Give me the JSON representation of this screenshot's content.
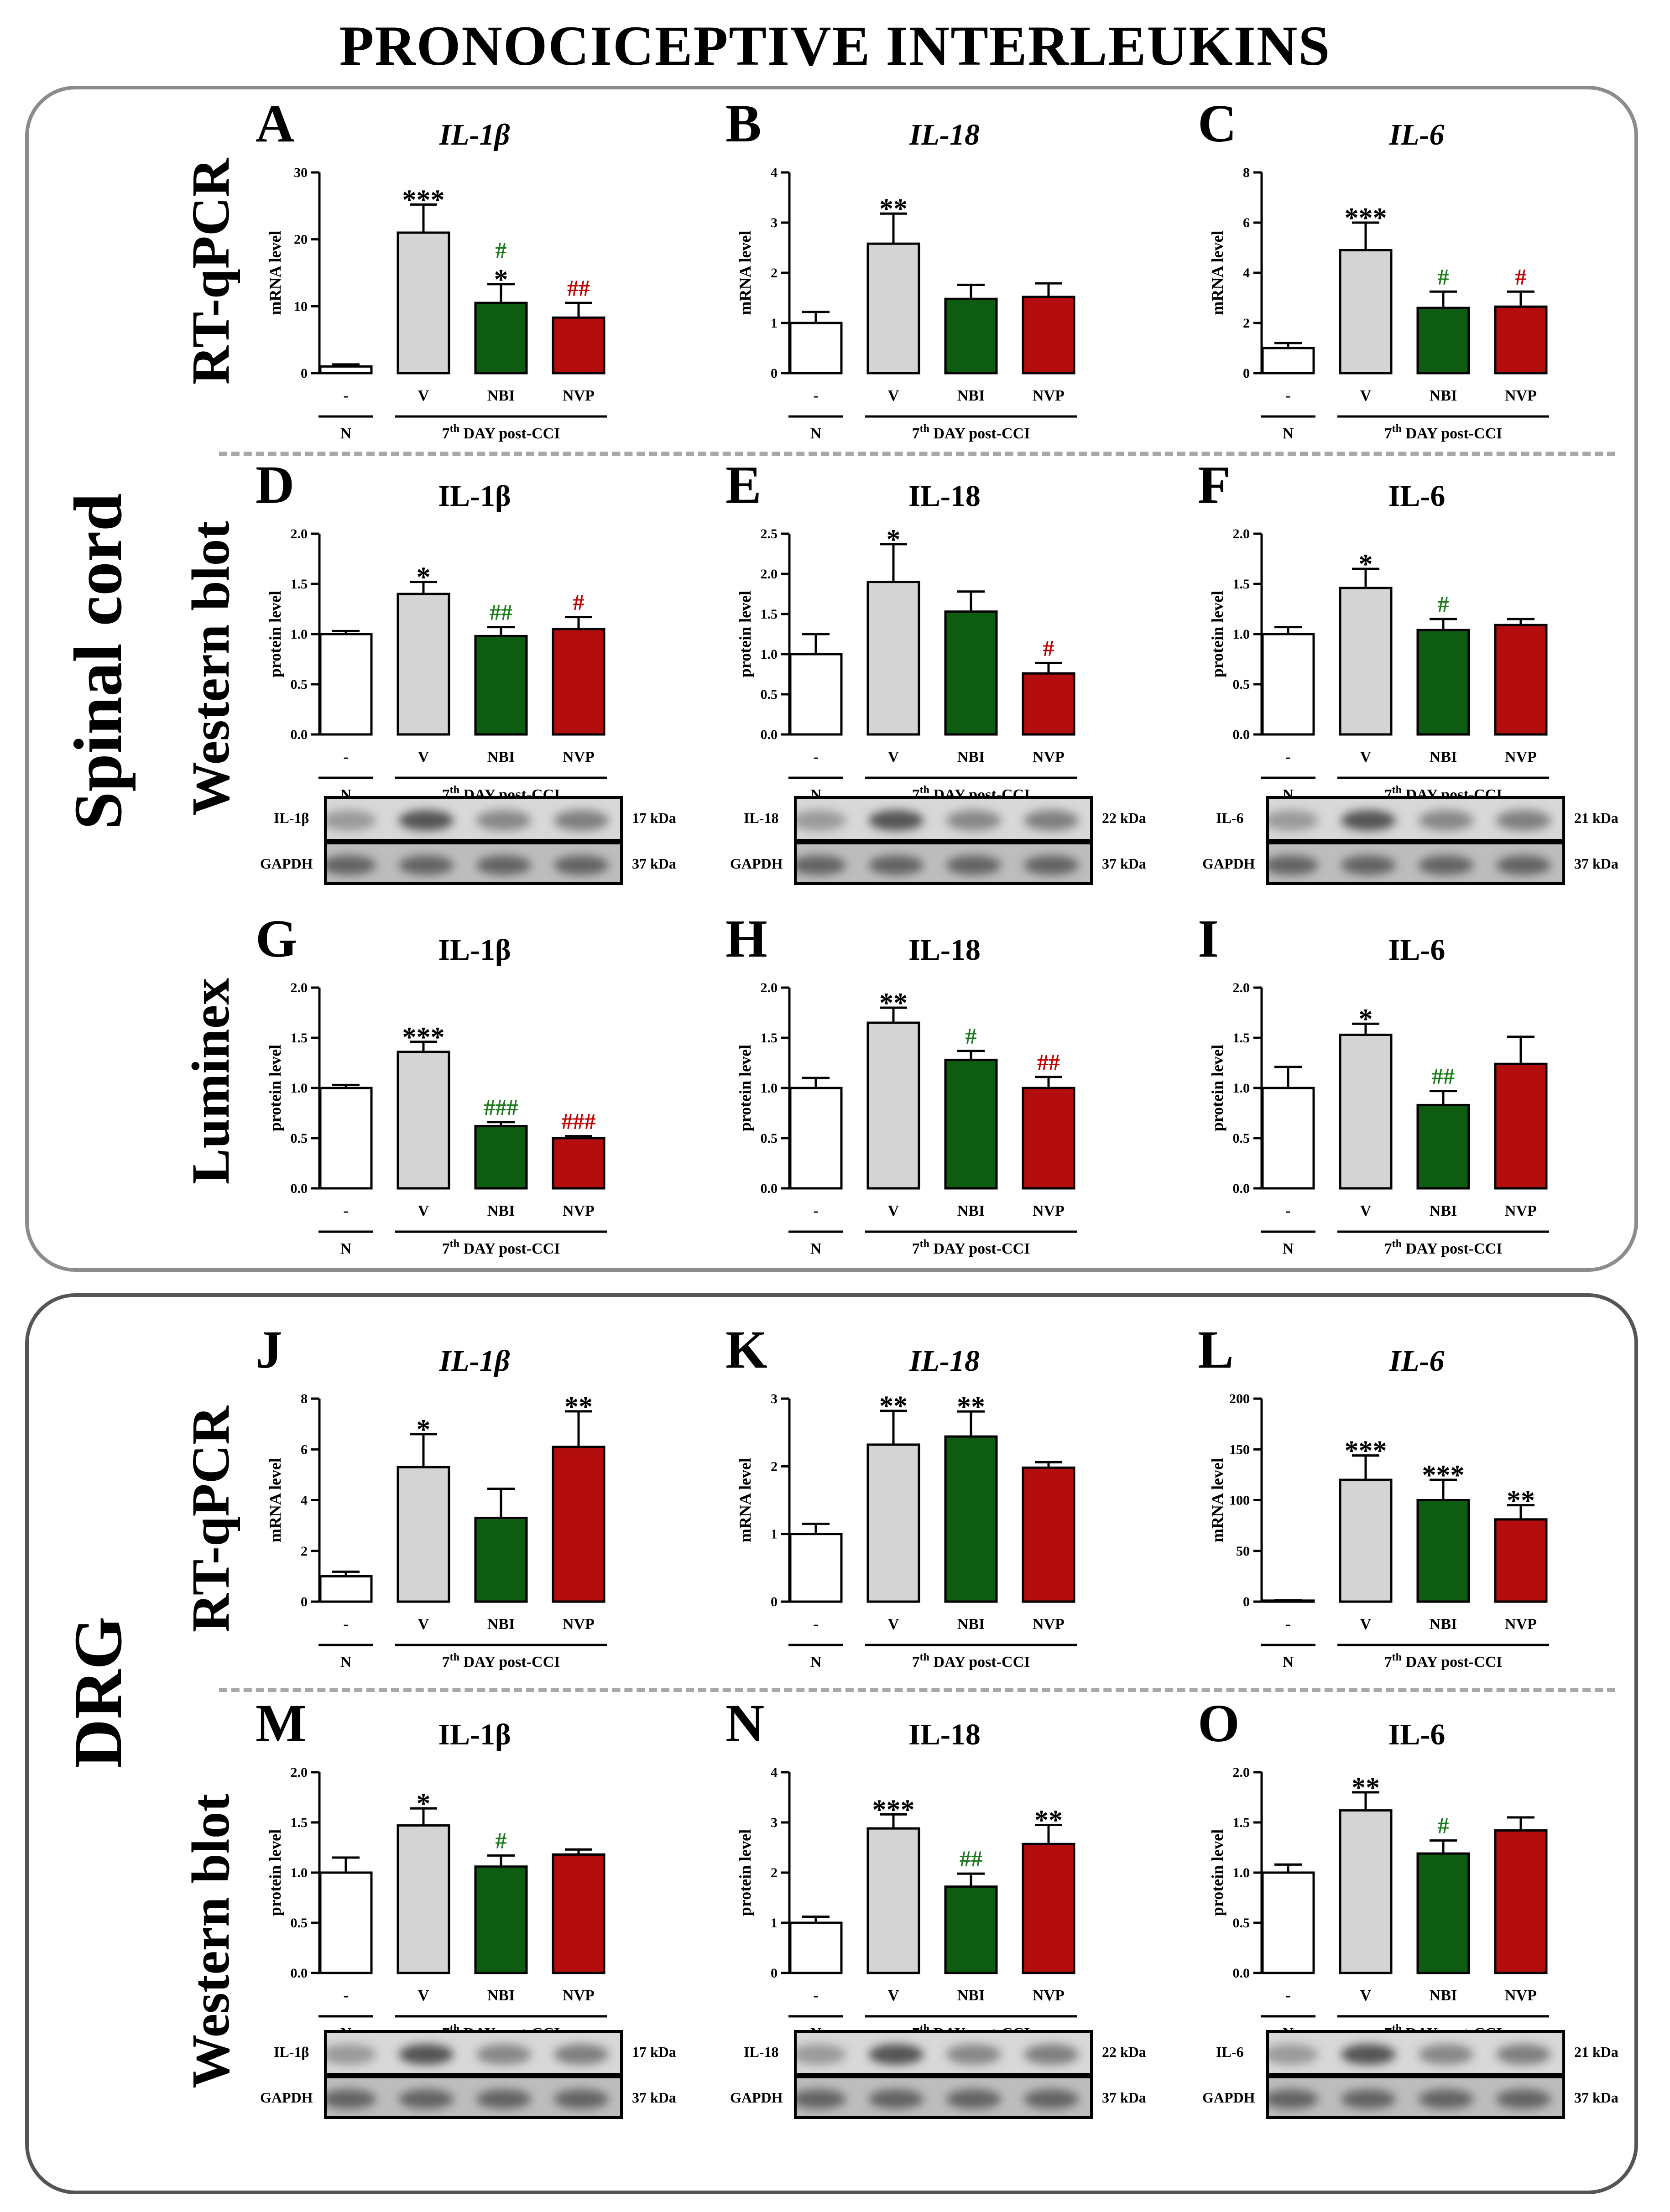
{
  "figure": {
    "title": "PRONOCICEPTIVE INTERLEUKINS",
    "groups": [
      {
        "label": "Spinal cord"
      },
      {
        "label": "DRG"
      }
    ],
    "methods": {
      "rtqpcr": "RT-qPCR",
      "western": "Western blot",
      "luminex": "Luminex"
    },
    "categories": [
      "-",
      "V",
      "NBI",
      "NVP"
    ],
    "group_n": "N",
    "group_day_prefix": "7",
    "group_day_sup": "th",
    "group_day_suffix": " DAY post-CCI",
    "colors": {
      "N": "#ffffff",
      "V": "#d4d4d4",
      "NBI": "#0e5c12",
      "NVP": "#b40d0d",
      "star": "#000000",
      "hash_NBI": "#1d7a1d",
      "hash_NVP": "#c00000"
    },
    "blots": {
      "D": {
        "target": "IL-1β",
        "target_kda": "17 kDa",
        "ref": "GAPDH",
        "ref_kda": "37 kDa"
      },
      "E": {
        "target": "IL-18",
        "target_kda": "22 kDa",
        "ref": "GAPDH",
        "ref_kda": "37 kDa"
      },
      "F": {
        "target": "IL-6",
        "target_kda": "21 kDa",
        "ref": "GAPDH",
        "ref_kda": "37 kDa"
      },
      "M": {
        "target": "IL-1β",
        "target_kda": "17 kDa",
        "ref": "GAPDH",
        "ref_kda": "37 kDa"
      },
      "N": {
        "target": "IL-18",
        "target_kda": "22 kDa",
        "ref": "GAPDH",
        "ref_kda": "37 kDa"
      },
      "O": {
        "target": "IL-6",
        "target_kda": "21 kDa",
        "ref": "GAPDH",
        "ref_kda": "37 kDa"
      }
    }
  },
  "chart_data": [
    {
      "panel": "A",
      "type": "bar",
      "title": "IL-1β",
      "title_italic": true,
      "ylabel": "mRNA level",
      "ylim": [
        0,
        30
      ],
      "yticks": [
        0,
        10,
        20,
        30
      ],
      "yticklabels": [
        "0",
        "10",
        "20",
        "30"
      ],
      "categories": [
        "-",
        "V",
        "NBI",
        "NVP"
      ],
      "values": [
        1.0,
        21.0,
        10.5,
        8.3
      ],
      "errors": [
        0.3,
        4.2,
        2.8,
        2.2
      ],
      "annotations": [
        {
          "bar": 1,
          "star": "***",
          "hash": ""
        },
        {
          "bar": 2,
          "star": "*",
          "hash": "#"
        },
        {
          "bar": 3,
          "star": "",
          "hash": "##"
        }
      ]
    },
    {
      "panel": "B",
      "type": "bar",
      "title": "IL-18",
      "title_italic": true,
      "ylabel": "mRNA level",
      "ylim": [
        0,
        4
      ],
      "yticks": [
        0,
        1,
        2,
        3,
        4
      ],
      "yticklabels": [
        "0",
        "1",
        "2",
        "3",
        "4"
      ],
      "categories": [
        "-",
        "V",
        "NBI",
        "NVP"
      ],
      "values": [
        1.0,
        2.58,
        1.48,
        1.52
      ],
      "errors": [
        0.22,
        0.6,
        0.28,
        0.27
      ],
      "annotations": [
        {
          "bar": 1,
          "star": "**",
          "hash": ""
        }
      ]
    },
    {
      "panel": "C",
      "type": "bar",
      "title": "IL-6",
      "title_italic": true,
      "ylabel": "mRNA level",
      "ylim": [
        0,
        8
      ],
      "yticks": [
        0,
        2,
        4,
        6,
        8
      ],
      "yticklabels": [
        "0",
        "2",
        "4",
        "6",
        "8"
      ],
      "categories": [
        "-",
        "V",
        "NBI",
        "NVP"
      ],
      "values": [
        1.0,
        4.9,
        2.6,
        2.65
      ],
      "errors": [
        0.2,
        1.1,
        0.65,
        0.6
      ],
      "annotations": [
        {
          "bar": 1,
          "star": "***",
          "hash": ""
        },
        {
          "bar": 2,
          "star": "",
          "hash": "#"
        },
        {
          "bar": 3,
          "star": "",
          "hash": "#"
        }
      ]
    },
    {
      "panel": "D",
      "type": "bar",
      "title": "IL-1β",
      "title_italic": false,
      "ylabel": "protein level",
      "ylim": [
        0,
        2
      ],
      "yticks": [
        0,
        0.5,
        1,
        1.5,
        2
      ],
      "yticklabels": [
        "0.0",
        "0.5",
        "1.0",
        "1.5",
        "2.0"
      ],
      "categories": [
        "-",
        "V",
        "NBI",
        "NVP"
      ],
      "values": [
        1.0,
        1.4,
        0.98,
        1.05
      ],
      "errors": [
        0.03,
        0.12,
        0.09,
        0.12
      ],
      "annotations": [
        {
          "bar": 1,
          "star": "*",
          "hash": ""
        },
        {
          "bar": 2,
          "star": "",
          "hash": "##"
        },
        {
          "bar": 3,
          "star": "",
          "hash": "#"
        }
      ]
    },
    {
      "panel": "E",
      "type": "bar",
      "title": "IL-18",
      "title_italic": false,
      "ylabel": "protein level",
      "ylim": [
        0,
        2.5
      ],
      "yticks": [
        0,
        0.5,
        1,
        1.5,
        2,
        2.5
      ],
      "yticklabels": [
        "0.0",
        "0.5",
        "1.0",
        "1.5",
        "2.0",
        "2.5"
      ],
      "categories": [
        "-",
        "V",
        "NBI",
        "NVP"
      ],
      "values": [
        1.0,
        1.9,
        1.53,
        0.76
      ],
      "errors": [
        0.25,
        0.47,
        0.25,
        0.13
      ],
      "annotations": [
        {
          "bar": 1,
          "star": "*",
          "hash": ""
        },
        {
          "bar": 3,
          "star": "",
          "hash": "#"
        }
      ]
    },
    {
      "panel": "F",
      "type": "bar",
      "title": "IL-6",
      "title_italic": false,
      "ylabel": "protein level",
      "ylim": [
        0,
        2
      ],
      "yticks": [
        0,
        0.5,
        1,
        1.5,
        2
      ],
      "yticklabels": [
        "0.0",
        "0.5",
        "1.0",
        "1.5",
        "2.0"
      ],
      "categories": [
        "-",
        "V",
        "NBI",
        "NVP"
      ],
      "values": [
        1.0,
        1.46,
        1.04,
        1.09
      ],
      "errors": [
        0.07,
        0.19,
        0.11,
        0.06
      ],
      "annotations": [
        {
          "bar": 1,
          "star": "*",
          "hash": ""
        },
        {
          "bar": 2,
          "star": "",
          "hash": "#"
        }
      ]
    },
    {
      "panel": "G",
      "type": "bar",
      "title": "IL-1β",
      "title_italic": false,
      "ylabel": "protein level",
      "ylim": [
        0,
        2
      ],
      "yticks": [
        0,
        0.5,
        1,
        1.5,
        2
      ],
      "yticklabels": [
        "0.0",
        "0.5",
        "1.0",
        "1.5",
        "2.0"
      ],
      "categories": [
        "-",
        "V",
        "NBI",
        "NVP"
      ],
      "values": [
        1.0,
        1.36,
        0.62,
        0.5
      ],
      "errors": [
        0.03,
        0.1,
        0.04,
        0.02
      ],
      "annotations": [
        {
          "bar": 1,
          "star": "***",
          "hash": ""
        },
        {
          "bar": 2,
          "star": "",
          "hash": "###"
        },
        {
          "bar": 3,
          "star": "",
          "hash": "###"
        }
      ]
    },
    {
      "panel": "H",
      "type": "bar",
      "title": "IL-18",
      "title_italic": false,
      "ylabel": "protein level",
      "ylim": [
        0,
        2
      ],
      "yticks": [
        0,
        0.5,
        1,
        1.5,
        2
      ],
      "yticklabels": [
        "0.0",
        "0.5",
        "1.0",
        "1.5",
        "2.0"
      ],
      "categories": [
        "-",
        "V",
        "NBI",
        "NVP"
      ],
      "values": [
        1.0,
        1.65,
        1.28,
        1.0
      ],
      "errors": [
        0.1,
        0.15,
        0.09,
        0.11
      ],
      "annotations": [
        {
          "bar": 1,
          "star": "**",
          "hash": ""
        },
        {
          "bar": 2,
          "star": "",
          "hash": "#"
        },
        {
          "bar": 3,
          "star": "",
          "hash": "##"
        }
      ]
    },
    {
      "panel": "I",
      "type": "bar",
      "title": "IL-6",
      "title_italic": false,
      "ylabel": "protein level",
      "ylim": [
        0,
        2
      ],
      "yticks": [
        0,
        0.5,
        1,
        1.5,
        2
      ],
      "yticklabels": [
        "0.0",
        "0.5",
        "1.0",
        "1.5",
        "2.0"
      ],
      "categories": [
        "-",
        "V",
        "NBI",
        "NVP"
      ],
      "values": [
        1.0,
        1.53,
        0.83,
        1.24
      ],
      "errors": [
        0.21,
        0.11,
        0.14,
        0.27
      ],
      "annotations": [
        {
          "bar": 1,
          "star": "*",
          "hash": ""
        },
        {
          "bar": 2,
          "star": "",
          "hash": "##"
        }
      ]
    },
    {
      "panel": "J",
      "type": "bar",
      "title": "IL-1β",
      "title_italic": true,
      "ylabel": "mRNA level",
      "ylim": [
        0,
        8
      ],
      "yticks": [
        0,
        2,
        4,
        6,
        8
      ],
      "yticklabels": [
        "0",
        "2",
        "4",
        "6",
        "8"
      ],
      "categories": [
        "-",
        "V",
        "NBI",
        "NVP"
      ],
      "values": [
        1.0,
        5.3,
        3.3,
        6.1
      ],
      "errors": [
        0.18,
        1.3,
        1.15,
        1.4
      ],
      "annotations": [
        {
          "bar": 1,
          "star": "*",
          "hash": ""
        },
        {
          "bar": 3,
          "star": "**",
          "hash": ""
        }
      ]
    },
    {
      "panel": "K",
      "type": "bar",
      "title": "IL-18",
      "title_italic": true,
      "ylabel": "mRNA level",
      "ylim": [
        0,
        3
      ],
      "yticks": [
        0,
        1,
        2,
        3
      ],
      "yticklabels": [
        "0",
        "1",
        "2",
        "3"
      ],
      "categories": [
        "-",
        "V",
        "NBI",
        "NVP"
      ],
      "values": [
        1.0,
        2.32,
        2.44,
        1.98
      ],
      "errors": [
        0.15,
        0.5,
        0.37,
        0.08
      ],
      "annotations": [
        {
          "bar": 1,
          "star": "**",
          "hash": ""
        },
        {
          "bar": 2,
          "star": "**",
          "hash": ""
        }
      ]
    },
    {
      "panel": "L",
      "type": "bar",
      "title": "IL-6",
      "title_italic": true,
      "ylabel": "mRNA level",
      "ylim": [
        0,
        200
      ],
      "yticks": [
        0,
        50,
        100,
        150,
        200
      ],
      "yticklabels": [
        "0",
        "50",
        "100",
        "150",
        "200"
      ],
      "categories": [
        "-",
        "V",
        "NBI",
        "NVP"
      ],
      "values": [
        1.0,
        120,
        100,
        81
      ],
      "errors": [
        0.4,
        24,
        20,
        14
      ],
      "annotations": [
        {
          "bar": 1,
          "star": "***",
          "hash": ""
        },
        {
          "bar": 2,
          "star": "***",
          "hash": ""
        },
        {
          "bar": 3,
          "star": "**",
          "hash": ""
        }
      ]
    },
    {
      "panel": "M",
      "type": "bar",
      "title": "IL-1β",
      "title_italic": false,
      "ylabel": "protein level",
      "ylim": [
        0,
        2
      ],
      "yticks": [
        0,
        0.5,
        1,
        1.5,
        2
      ],
      "yticklabels": [
        "0.0",
        "0.5",
        "1.0",
        "1.5",
        "2.0"
      ],
      "categories": [
        "-",
        "V",
        "NBI",
        "NVP"
      ],
      "values": [
        1.0,
        1.47,
        1.06,
        1.18
      ],
      "errors": [
        0.15,
        0.17,
        0.11,
        0.05
      ],
      "annotations": [
        {
          "bar": 1,
          "star": "*",
          "hash": ""
        },
        {
          "bar": 2,
          "star": "",
          "hash": "#"
        }
      ]
    },
    {
      "panel": "N",
      "type": "bar",
      "title": "IL-18",
      "title_italic": false,
      "ylabel": "protein level",
      "ylim": [
        0,
        4
      ],
      "yticks": [
        0,
        1,
        2,
        3,
        4
      ],
      "yticklabels": [
        "0",
        "1",
        "2",
        "3",
        "4"
      ],
      "categories": [
        "-",
        "V",
        "NBI",
        "NVP"
      ],
      "values": [
        1.0,
        2.88,
        1.72,
        2.57
      ],
      "errors": [
        0.12,
        0.28,
        0.26,
        0.38
      ],
      "annotations": [
        {
          "bar": 1,
          "star": "***",
          "hash": ""
        },
        {
          "bar": 2,
          "star": "",
          "hash": "##"
        },
        {
          "bar": 3,
          "star": "**",
          "hash": ""
        }
      ]
    },
    {
      "panel": "O",
      "type": "bar",
      "title": "IL-6",
      "title_italic": false,
      "ylabel": "protein level",
      "ylim": [
        0,
        2
      ],
      "yticks": [
        0,
        0.5,
        1,
        1.5,
        2
      ],
      "yticklabels": [
        "0.0",
        "0.5",
        "1.0",
        "1.5",
        "2.0"
      ],
      "categories": [
        "-",
        "V",
        "NBI",
        "NVP"
      ],
      "values": [
        1.0,
        1.62,
        1.19,
        1.42
      ],
      "errors": [
        0.08,
        0.18,
        0.13,
        0.13
      ],
      "annotations": [
        {
          "bar": 1,
          "star": "**",
          "hash": ""
        },
        {
          "bar": 2,
          "star": "",
          "hash": "#"
        }
      ]
    }
  ]
}
